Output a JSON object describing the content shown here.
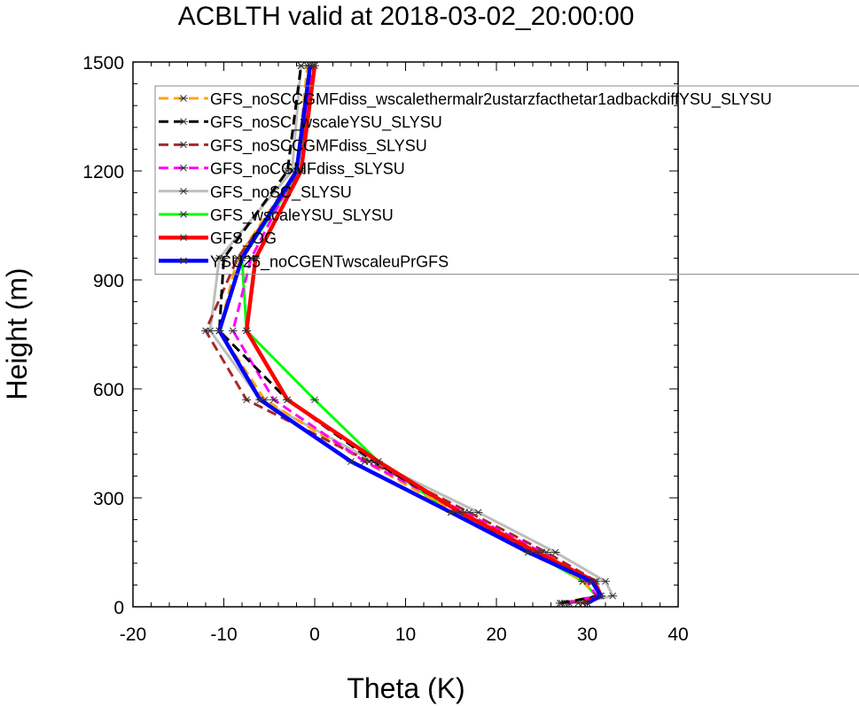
{
  "chart_data": {
    "type": "line",
    "title": "ACBLTH valid at 2018-03-02_20:00:00",
    "xlabel": "Theta (K)",
    "ylabel": "Height (m)",
    "xlim": [
      -20,
      40
    ],
    "ylim": [
      0,
      1500
    ],
    "xticks": [
      -20,
      -10,
      0,
      10,
      20,
      30,
      40
    ],
    "yticks": [
      0,
      300,
      600,
      900,
      1200,
      1500
    ],
    "xtick_labels": [
      "-20",
      "-10",
      "0",
      "10",
      "20",
      "30",
      "40"
    ],
    "ytick_labels": [
      "0",
      "300",
      "600",
      "900",
      "1200",
      "1500"
    ],
    "grid": false,
    "legend_position": "top-right",
    "series": [
      {
        "name": "GFS_noSCCGMFdiss_wscalethermalr2ustarzfacthetar1adbackdiffYSU_SLYSU",
        "color": "#ffa500",
        "dash": "dashed",
        "x": [
          27.2,
          31.0,
          29.5,
          24.5,
          15.5,
          5.5,
          -5.5,
          -10.5,
          -8.5,
          -2.0,
          -0.8
        ],
        "y": [
          10,
          30,
          70,
          150,
          260,
          400,
          570,
          760,
          960,
          1200,
          1490
        ]
      },
      {
        "name": "GFS_noSC_wscaleYSU_SLYSU",
        "color": "#000000",
        "dash": "dashed",
        "x": [
          27.0,
          31.5,
          30.5,
          24.0,
          16.0,
          6.5,
          -3.0,
          -10.5,
          -10.0,
          -3.0,
          -1.5
        ],
        "y": [
          10,
          30,
          70,
          150,
          260,
          400,
          570,
          760,
          960,
          1200,
          1490
        ]
      },
      {
        "name": "GFS_noSCCGMFdiss_SLYSU",
        "color": "#a52a2a",
        "dash": "dashed",
        "x": [
          28.0,
          31.3,
          31.0,
          25.5,
          17.0,
          6.0,
          -7.5,
          -12.0,
          -8.5,
          -1.5,
          -0.5
        ],
        "y": [
          10,
          30,
          70,
          150,
          260,
          400,
          570,
          760,
          960,
          1200,
          1490
        ]
      },
      {
        "name": "GFS_noCGMFdiss_SLYSU",
        "color": "#ff00ff",
        "dash": "dashed",
        "x": [
          27.5,
          31.0,
          30.0,
          25.0,
          16.5,
          5.5,
          -4.5,
          -9.0,
          -7.0,
          -2.0,
          -0.2
        ],
        "y": [
          10,
          30,
          70,
          150,
          260,
          400,
          570,
          760,
          960,
          1200,
          1490
        ]
      },
      {
        "name": "GFS_noSC_SLYSU",
        "color": "#bebebe",
        "dash": "solid",
        "x": [
          29.0,
          32.8,
          32.0,
          26.5,
          18.0,
          6.5,
          -6.0,
          -11.5,
          -10.5,
          -2.5,
          -1.5
        ],
        "y": [
          10,
          30,
          70,
          150,
          260,
          400,
          570,
          760,
          960,
          1200,
          1490
        ]
      },
      {
        "name": "GFS_wscaleYSU_SLYSU",
        "color": "#00ff00",
        "dash": "solid",
        "x": [
          29.5,
          31.0,
          29.5,
          24.0,
          15.0,
          7.0,
          0.0,
          -7.5,
          -8.0,
          -1.5,
          -0.5
        ],
        "y": [
          10,
          30,
          70,
          150,
          260,
          400,
          570,
          760,
          960,
          1200,
          1490
        ]
      },
      {
        "name": "GFS_OG",
        "color": "#ff0000",
        "dash": "solid",
        "x": [
          29.5,
          31.5,
          30.8,
          24.5,
          16.0,
          7.0,
          -3.0,
          -7.5,
          -6.5,
          -1.5,
          0.0
        ],
        "y": [
          10,
          30,
          70,
          150,
          260,
          400,
          570,
          760,
          960,
          1200,
          1490
        ]
      },
      {
        "name": "YSU25_noCGENTwscaleuPrGFS",
        "color": "#0000ff",
        "dash": "solid",
        "x": [
          30.0,
          31.5,
          30.5,
          23.5,
          15.0,
          4.0,
          -6.0,
          -10.5,
          -8.0,
          -2.0,
          -0.5
        ],
        "y": [
          10,
          30,
          70,
          150,
          260,
          400,
          570,
          760,
          960,
          1200,
          1490
        ]
      }
    ]
  }
}
